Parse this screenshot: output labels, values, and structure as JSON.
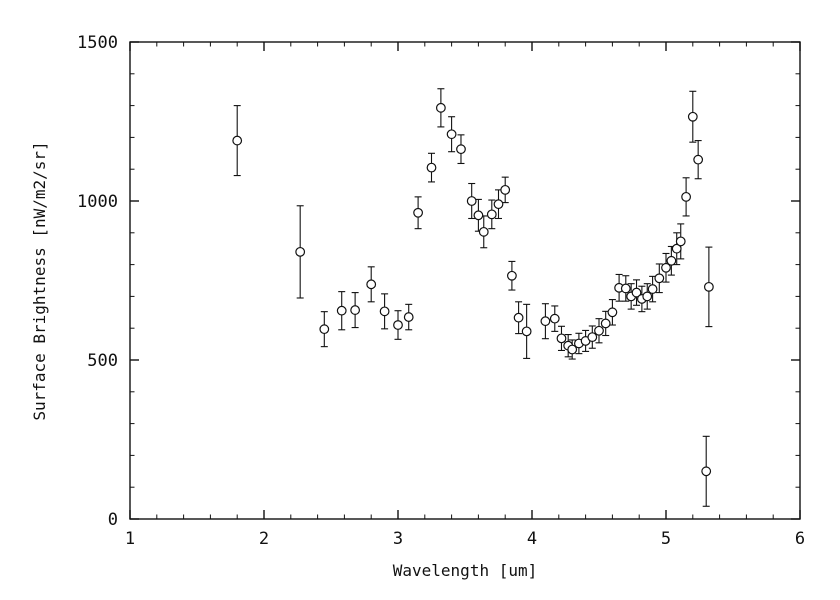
{
  "figure": {
    "background": "#ffffff",
    "plot_color": "#111111"
  },
  "chart_data": {
    "type": "scatter",
    "title": "",
    "xlabel": "Wavelength [um]",
    "ylabel": "Surface Brightness [nW/m2/sr]",
    "xlim": [
      1,
      6
    ],
    "ylim": [
      0,
      1500
    ],
    "x_ticks": [
      1,
      2,
      3,
      4,
      5,
      6
    ],
    "y_ticks": [
      0,
      500,
      1000,
      1500
    ],
    "x_minor_step": 0.2,
    "y_minor_step": 100,
    "grid": false,
    "legend": "none",
    "marker": "open-circle",
    "errorbars": "vertical",
    "color": "#111111",
    "points": [
      [
        1.8,
        1190,
        110
      ],
      [
        2.27,
        840,
        145
      ],
      [
        2.45,
        597,
        55
      ],
      [
        2.58,
        655,
        60
      ],
      [
        2.68,
        657,
        55
      ],
      [
        2.8,
        738,
        55
      ],
      [
        2.9,
        653,
        55
      ],
      [
        3.0,
        610,
        45
      ],
      [
        3.08,
        635,
        40
      ],
      [
        3.15,
        963,
        50
      ],
      [
        3.25,
        1105,
        45
      ],
      [
        3.32,
        1293,
        60
      ],
      [
        3.4,
        1210,
        55
      ],
      [
        3.47,
        1163,
        45
      ],
      [
        3.55,
        1000,
        55
      ],
      [
        3.6,
        955,
        50
      ],
      [
        3.64,
        903,
        50
      ],
      [
        3.7,
        958,
        45
      ],
      [
        3.75,
        990,
        45
      ],
      [
        3.8,
        1035,
        40
      ],
      [
        3.85,
        765,
        45
      ],
      [
        3.9,
        633,
        50
      ],
      [
        3.96,
        590,
        85
      ],
      [
        4.1,
        622,
        55
      ],
      [
        4.17,
        630,
        40
      ],
      [
        4.22,
        568,
        38
      ],
      [
        4.27,
        545,
        35
      ],
      [
        4.3,
        533,
        30
      ],
      [
        4.35,
        552,
        32
      ],
      [
        4.4,
        560,
        33
      ],
      [
        4.45,
        572,
        35
      ],
      [
        4.5,
        592,
        38
      ],
      [
        4.55,
        615,
        38
      ],
      [
        4.6,
        650,
        40
      ],
      [
        4.65,
        727,
        42
      ],
      [
        4.7,
        725,
        40
      ],
      [
        4.74,
        700,
        40
      ],
      [
        4.78,
        712,
        40
      ],
      [
        4.82,
        692,
        40
      ],
      [
        4.86,
        700,
        40
      ],
      [
        4.9,
        723,
        40
      ],
      [
        4.95,
        757,
        45
      ],
      [
        5.0,
        790,
        45
      ],
      [
        5.04,
        812,
        45
      ],
      [
        5.08,
        850,
        50
      ],
      [
        5.11,
        873,
        55
      ],
      [
        5.15,
        1013,
        60
      ],
      [
        5.2,
        1265,
        80
      ],
      [
        5.24,
        1130,
        60
      ],
      [
        5.32,
        730,
        125
      ],
      [
        5.3,
        150,
        110
      ]
    ]
  }
}
